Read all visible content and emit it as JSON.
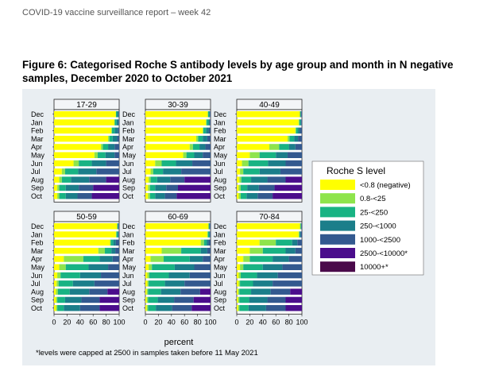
{
  "header": "COVID-19 vaccine surveillance report – week 42",
  "title": "Figure 6: Categorised Roche S antibody levels by age group and month in N negative samples, December 2020 to October 2021",
  "footnote": "*levels were capped at 2500 in samples taken before 11 May 2021",
  "chart_data": {
    "type": "bar",
    "orientation": "horizontal",
    "stacked": true,
    "xlabel": "percent",
    "xlim": [
      0,
      100
    ],
    "xticks": [
      0,
      20,
      40,
      60,
      80,
      100
    ],
    "legend": {
      "title": "Roche S level",
      "placement": "right",
      "entries": [
        {
          "label": "<0.8 (negative)",
          "color": "#ffff00"
        },
        {
          "label": "0.8-<25",
          "color": "#8ee44c"
        },
        {
          "label": "25-<250",
          "color": "#18b383"
        },
        {
          "label": "250-<1000",
          "color": "#1b7e8a"
        },
        {
          "label": "1000-<2500",
          "color": "#33598f"
        },
        {
          "label": "2500-<10000*",
          "color": "#4b0d8c"
        },
        {
          "label": "10000+*",
          "color": "#4a0a4a"
        }
      ]
    },
    "categories": [
      "Dec",
      "Jan",
      "Feb",
      "Mar",
      "Apr",
      "May",
      "Jun",
      "Jul",
      "Aug",
      "Sep",
      "Oct"
    ],
    "panels": [
      {
        "title": "17-29",
        "values": [
          [
            95,
            0,
            2,
            2,
            1,
            0,
            0
          ],
          [
            93,
            0,
            3,
            3,
            1,
            0,
            0
          ],
          [
            88,
            1,
            4,
            5,
            2,
            0,
            0
          ],
          [
            83,
            2,
            5,
            7,
            3,
            0,
            0
          ],
          [
            72,
            3,
            8,
            10,
            7,
            0,
            0
          ],
          [
            62,
            5,
            12,
            14,
            7,
            0,
            0
          ],
          [
            30,
            8,
            20,
            22,
            20,
            0,
            0
          ],
          [
            12,
            5,
            20,
            28,
            35,
            0,
            0
          ],
          [
            8,
            4,
            14,
            28,
            26,
            20,
            0
          ],
          [
            5,
            3,
            10,
            20,
            22,
            40,
            0
          ],
          [
            5,
            3,
            10,
            18,
            22,
            42,
            0
          ]
        ]
      },
      {
        "title": "30-39",
        "values": [
          [
            96,
            0,
            2,
            1,
            1,
            0,
            0
          ],
          [
            93,
            1,
            3,
            2,
            1,
            0,
            0
          ],
          [
            88,
            1,
            4,
            4,
            3,
            0,
            0
          ],
          [
            78,
            3,
            7,
            7,
            5,
            0,
            0
          ],
          [
            68,
            5,
            10,
            9,
            8,
            0,
            0
          ],
          [
            58,
            5,
            12,
            13,
            12,
            0,
            0
          ],
          [
            15,
            10,
            22,
            25,
            28,
            0,
            0
          ],
          [
            8,
            4,
            15,
            28,
            45,
            0,
            0
          ],
          [
            5,
            3,
            10,
            20,
            22,
            40,
            0
          ],
          [
            4,
            3,
            8,
            17,
            18,
            50,
            0
          ],
          [
            4,
            3,
            8,
            15,
            18,
            52,
            0
          ]
        ]
      },
      {
        "title": "40-49",
        "values": [
          [
            97,
            0,
            1,
            1,
            1,
            0,
            0
          ],
          [
            95,
            1,
            2,
            1,
            1,
            0,
            0
          ],
          [
            90,
            1,
            3,
            3,
            3,
            0,
            0
          ],
          [
            78,
            3,
            7,
            6,
            6,
            0,
            0
          ],
          [
            50,
            15,
            15,
            10,
            10,
            0,
            0
          ],
          [
            20,
            15,
            25,
            18,
            22,
            0,
            0
          ],
          [
            8,
            10,
            30,
            27,
            25,
            0,
            0
          ],
          [
            5,
            5,
            25,
            32,
            33,
            0,
            0
          ],
          [
            4,
            3,
            15,
            25,
            28,
            25,
            0
          ],
          [
            3,
            3,
            10,
            18,
            24,
            42,
            0
          ],
          [
            3,
            3,
            9,
            17,
            23,
            45,
            0
          ]
        ]
      },
      {
        "title": "50-59",
        "values": [
          [
            97,
            0,
            1,
            1,
            1,
            0,
            0
          ],
          [
            95,
            1,
            2,
            1,
            1,
            0,
            0
          ],
          [
            86,
            1,
            4,
            4,
            5,
            0,
            0
          ],
          [
            68,
            10,
            10,
            6,
            6,
            0,
            0
          ],
          [
            15,
            30,
            25,
            20,
            10,
            0,
            0
          ],
          [
            8,
            10,
            35,
            30,
            17,
            0,
            0
          ],
          [
            5,
            5,
            30,
            32,
            28,
            0,
            0
          ],
          [
            4,
            3,
            22,
            33,
            38,
            0,
            0
          ],
          [
            3,
            3,
            18,
            30,
            28,
            18,
            0
          ],
          [
            3,
            2,
            12,
            25,
            28,
            30,
            0
          ],
          [
            3,
            2,
            10,
            25,
            30,
            30,
            0
          ]
        ]
      },
      {
        "title": "60-69",
        "values": [
          [
            97,
            0,
            1,
            1,
            1,
            0,
            0
          ],
          [
            95,
            1,
            2,
            1,
            1,
            0,
            0
          ],
          [
            85,
            5,
            4,
            3,
            3,
            0,
            0
          ],
          [
            25,
            30,
            30,
            10,
            5,
            0,
            0
          ],
          [
            8,
            20,
            40,
            20,
            12,
            0,
            0
          ],
          [
            5,
            5,
            35,
            30,
            25,
            0,
            0
          ],
          [
            3,
            3,
            30,
            32,
            32,
            0,
            0
          ],
          [
            3,
            2,
            25,
            30,
            40,
            0,
            0
          ],
          [
            2,
            2,
            20,
            30,
            30,
            16,
            0
          ],
          [
            2,
            2,
            15,
            25,
            30,
            26,
            0
          ],
          [
            2,
            2,
            12,
            25,
            30,
            29,
            0
          ]
        ]
      },
      {
        "title": "70-84",
        "values": [
          [
            97,
            1,
            1,
            0,
            1,
            0,
            0
          ],
          [
            95,
            1,
            1,
            1,
            2,
            0,
            0
          ],
          [
            35,
            25,
            25,
            8,
            7,
            0,
            0
          ],
          [
            20,
            20,
            35,
            15,
            10,
            0,
            0
          ],
          [
            10,
            10,
            35,
            25,
            20,
            0,
            0
          ],
          [
            5,
            5,
            30,
            30,
            30,
            0,
            0
          ],
          [
            3,
            3,
            25,
            32,
            37,
            0,
            0
          ],
          [
            3,
            2,
            20,
            30,
            45,
            0,
            0
          ],
          [
            2,
            2,
            18,
            30,
            30,
            18,
            0
          ],
          [
            2,
            2,
            15,
            28,
            28,
            25,
            0
          ],
          [
            2,
            2,
            14,
            27,
            30,
            25,
            0
          ]
        ]
      }
    ]
  }
}
